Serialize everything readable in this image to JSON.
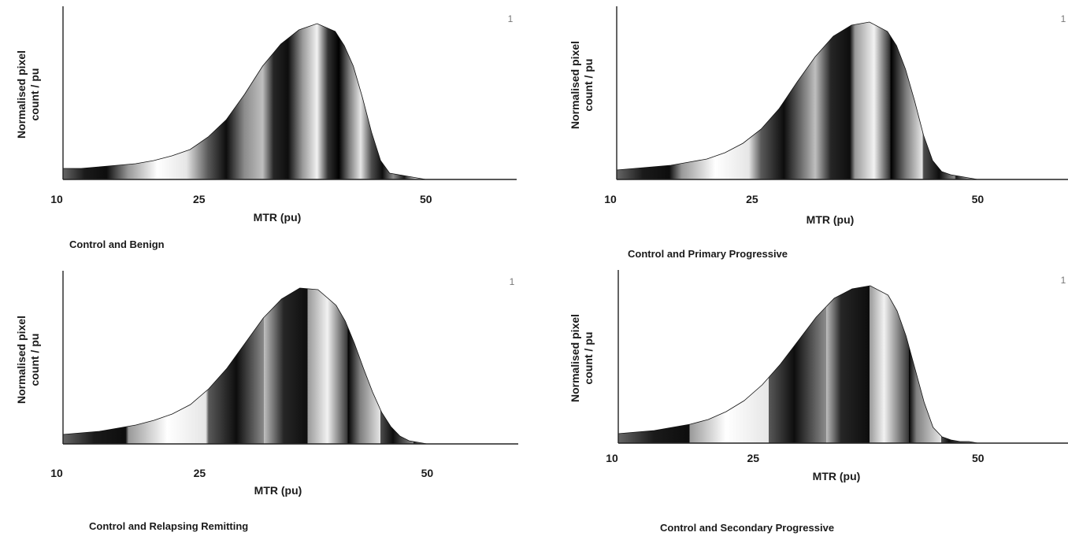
{
  "figure": {
    "gradient_colors": [
      "#ffffff",
      "#000000"
    ]
  },
  "chart_data": [
    {
      "type": "area",
      "caption": "Control and Benign",
      "xlabel": "MTR (pu)",
      "ylabel": "Normalised pixel count / pu",
      "ylabel_lines": [
        "Normalised pixel",
        "count / pu"
      ],
      "corner_label": "1",
      "xticks": [
        10,
        25,
        50
      ],
      "xlim": [
        10,
        60
      ],
      "ylim": [
        0,
        1
      ],
      "grid": false,
      "x": [
        10,
        12,
        14,
        16,
        18,
        20,
        22,
        24,
        26,
        28,
        30,
        32,
        34,
        36,
        38,
        40,
        41,
        42,
        43,
        44,
        45,
        46,
        47,
        48,
        49,
        50
      ],
      "values": [
        0.07,
        0.07,
        0.08,
        0.09,
        0.1,
        0.12,
        0.15,
        0.19,
        0.27,
        0.38,
        0.54,
        0.72,
        0.86,
        0.95,
        0.99,
        0.94,
        0.85,
        0.72,
        0.52,
        0.3,
        0.12,
        0.04,
        0.03,
        0.02,
        0.01,
        0.0
      ]
    },
    {
      "type": "area",
      "caption": "Control and Primary Progressive",
      "xlabel": "MTR (pu)",
      "ylabel": "Normalised pixel count / pu",
      "ylabel_lines": [
        "Normalised pixel",
        "count / pu"
      ],
      "corner_label": "1",
      "xticks": [
        10,
        25,
        50
      ],
      "xlim": [
        10,
        60
      ],
      "ylim": [
        0,
        1
      ],
      "grid": false,
      "x": [
        10,
        12,
        14,
        16,
        18,
        20,
        22,
        24,
        26,
        28,
        30,
        32,
        34,
        36,
        38,
        40,
        41,
        42,
        43,
        44,
        45,
        46,
        47,
        48,
        49,
        50
      ],
      "values": [
        0.06,
        0.07,
        0.08,
        0.09,
        0.11,
        0.13,
        0.17,
        0.23,
        0.32,
        0.45,
        0.62,
        0.78,
        0.91,
        0.98,
        1.0,
        0.94,
        0.85,
        0.7,
        0.5,
        0.28,
        0.12,
        0.05,
        0.03,
        0.02,
        0.01,
        0.0
      ]
    },
    {
      "type": "area",
      "caption": "Control and Relapsing Remitting",
      "xlabel": "MTR (pu)",
      "ylabel": "Normalised pixel count / pu",
      "ylabel_lines": [
        "Normalised pixel",
        "count / pu"
      ],
      "corner_label": "1",
      "xticks": [
        10,
        25,
        50
      ],
      "xlim": [
        10,
        60
      ],
      "ylim": [
        0,
        1
      ],
      "grid": false,
      "x": [
        10,
        12,
        14,
        16,
        18,
        20,
        22,
        24,
        26,
        28,
        30,
        32,
        34,
        36,
        38,
        40,
        41,
        42,
        43,
        44,
        45,
        46,
        47,
        48,
        49,
        50
      ],
      "values": [
        0.06,
        0.07,
        0.08,
        0.1,
        0.12,
        0.15,
        0.19,
        0.25,
        0.35,
        0.48,
        0.64,
        0.8,
        0.92,
        0.99,
        0.98,
        0.88,
        0.78,
        0.64,
        0.48,
        0.33,
        0.2,
        0.11,
        0.05,
        0.02,
        0.01,
        0.0
      ]
    },
    {
      "type": "area",
      "caption": "Control and Secondary Progressive",
      "xlabel": "MTR (pu)",
      "ylabel": "Normalised pixel count / pu",
      "ylabel_lines": [
        "Normalised pixel",
        "count / pu"
      ],
      "corner_label": "1",
      "xticks": [
        10,
        25,
        50
      ],
      "xlim": [
        10,
        60
      ],
      "ylim": [
        0,
        1
      ],
      "grid": false,
      "x": [
        10,
        12,
        14,
        16,
        18,
        20,
        22,
        24,
        26,
        28,
        30,
        32,
        34,
        36,
        38,
        40,
        41,
        42,
        43,
        44,
        45,
        46,
        47,
        48,
        49,
        50
      ],
      "values": [
        0.06,
        0.07,
        0.08,
        0.1,
        0.12,
        0.15,
        0.2,
        0.27,
        0.37,
        0.5,
        0.65,
        0.8,
        0.92,
        0.98,
        1.0,
        0.94,
        0.84,
        0.68,
        0.47,
        0.26,
        0.1,
        0.04,
        0.02,
        0.01,
        0.01,
        0.0
      ]
    }
  ]
}
